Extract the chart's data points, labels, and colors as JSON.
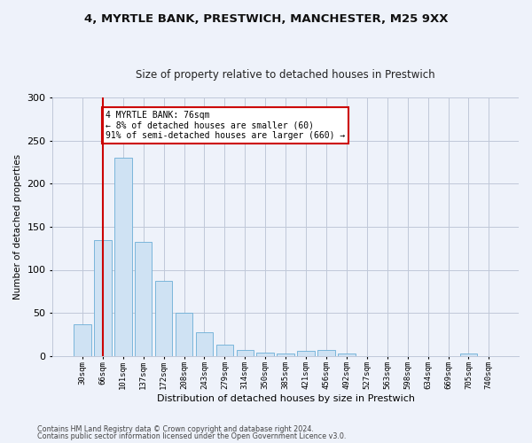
{
  "title1": "4, MYRTLE BANK, PRESTWICH, MANCHESTER, M25 9XX",
  "title2": "Size of property relative to detached houses in Prestwich",
  "xlabel": "Distribution of detached houses by size in Prestwich",
  "ylabel": "Number of detached properties",
  "bar_labels": [
    "30sqm",
    "66sqm",
    "101sqm",
    "137sqm",
    "172sqm",
    "208sqm",
    "243sqm",
    "279sqm",
    "314sqm",
    "350sqm",
    "385sqm",
    "421sqm",
    "456sqm",
    "492sqm",
    "527sqm",
    "563sqm",
    "598sqm",
    "634sqm",
    "669sqm",
    "705sqm",
    "740sqm"
  ],
  "bar_values": [
    37,
    135,
    230,
    132,
    87,
    50,
    27,
    13,
    7,
    4,
    3,
    6,
    7,
    3,
    0,
    0,
    0,
    0,
    0,
    3,
    0
  ],
  "bar_color": "#cfe2f3",
  "bar_edge_color": "#6baed6",
  "vline_x": 1,
  "vline_color": "#cc0000",
  "annotation_text": "4 MYRTLE BANK: 76sqm\n← 8% of detached houses are smaller (60)\n91% of semi-detached houses are larger (660) →",
  "annotation_box_color": "#ffffff",
  "annotation_box_edge": "#cc0000",
  "ylim": [
    0,
    300
  ],
  "yticks": [
    0,
    50,
    100,
    150,
    200,
    250,
    300
  ],
  "footer1": "Contains HM Land Registry data © Crown copyright and database right 2024.",
  "footer2": "Contains public sector information licensed under the Open Government Licence v3.0.",
  "bg_color": "#eef2fa",
  "plot_bg": "#eef2fa",
  "title1_fontsize": 9.5,
  "title2_fontsize": 8.5
}
